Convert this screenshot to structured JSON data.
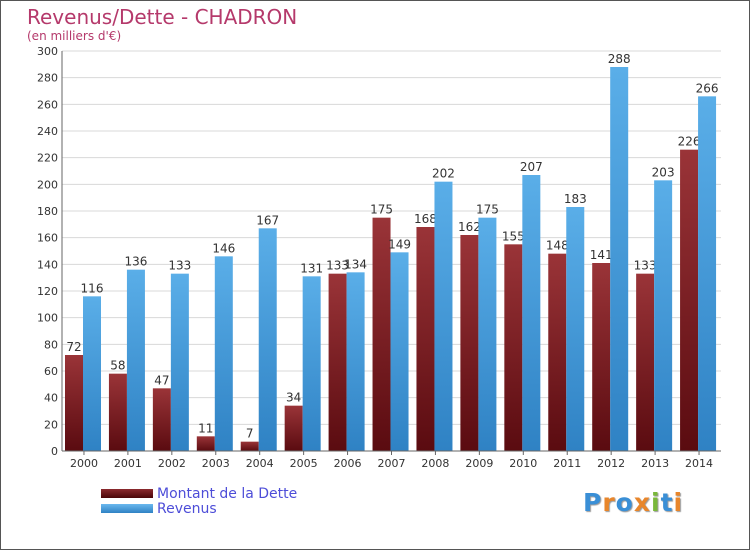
{
  "title": "Revenus/Dette - CHADRON",
  "subtitle": "(en milliers d'€)",
  "legend": [
    {
      "label": "Montant de la Dette",
      "color": "#8b2a2e"
    },
    {
      "label": "Revenus",
      "color": "#4aa3e2"
    }
  ],
  "logo": "Proxiti",
  "colors": {
    "debt": "#8b2a2e",
    "revenue": "#4aa3e2",
    "title": "#b5396b"
  },
  "chart_data": {
    "type": "bar",
    "categories": [
      "2000",
      "2001",
      "2002",
      "2003",
      "2004",
      "2005",
      "2006",
      "2007",
      "2008",
      "2009",
      "2010",
      "2011",
      "2012",
      "2013",
      "2014"
    ],
    "series": [
      {
        "name": "Montant de la Dette",
        "values": [
          72,
          58,
          47,
          11,
          7,
          34,
          133,
          175,
          168,
          162,
          155,
          148,
          141,
          133,
          226
        ]
      },
      {
        "name": "Revenus",
        "values": [
          116,
          136,
          133,
          146,
          167,
          131,
          134,
          149,
          202,
          175,
          207,
          183,
          288,
          203,
          266
        ]
      }
    ],
    "yticks": [
      0,
      20,
      40,
      60,
      80,
      100,
      120,
      140,
      160,
      180,
      200,
      220,
      240,
      260,
      280,
      300
    ],
    "ylim": [
      0,
      300
    ],
    "grid": true
  }
}
